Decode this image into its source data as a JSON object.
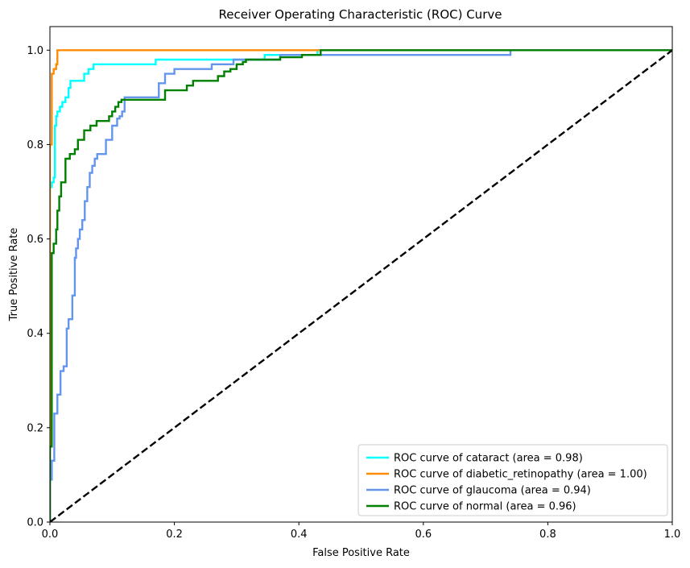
{
  "chart_data": {
    "type": "line",
    "title": "Receiver Operating Characteristic (ROC) Curve",
    "xlabel": "False Positive Rate",
    "ylabel": "True Positive Rate",
    "xlim": [
      0.0,
      1.0
    ],
    "ylim": [
      0.0,
      1.05
    ],
    "xticks": [
      0.0,
      0.2,
      0.4,
      0.6,
      0.8,
      1.0
    ],
    "yticks": [
      0.0,
      0.2,
      0.4,
      0.6,
      0.8,
      1.0
    ],
    "xtick_labels": [
      "0.0",
      "0.2",
      "0.4",
      "0.6",
      "0.8",
      "1.0"
    ],
    "ytick_labels": [
      "0.0",
      "0.2",
      "0.4",
      "0.6",
      "0.8",
      "1.0"
    ],
    "grid": false,
    "legend_position": "lower-right",
    "series": [
      {
        "name": "ROC curve of cataract (area = 0.98)",
        "color": "#00ffff",
        "x": [
          0,
          0,
          0.003,
          0.003,
          0.006,
          0.006,
          0.008,
          0.008,
          0.01,
          0.01,
          0.012,
          0.012,
          0.016,
          0.016,
          0.02,
          0.02,
          0.025,
          0.025,
          0.03,
          0.03,
          0.033,
          0.033,
          0.037,
          0.037,
          0.055,
          0.055,
          0.062,
          0.062,
          0.07,
          0.07,
          0.075,
          0.075,
          0.17,
          0.17,
          0.345,
          0.345,
          0.36,
          0.36,
          0.43,
          0.43,
          1.0
        ],
        "y": [
          0,
          0.71,
          0.71,
          0.72,
          0.72,
          0.73,
          0.73,
          0.84,
          0.84,
          0.86,
          0.86,
          0.87,
          0.87,
          0.88,
          0.88,
          0.89,
          0.89,
          0.9,
          0.9,
          0.92,
          0.92,
          0.935,
          0.935,
          0.935,
          0.935,
          0.95,
          0.95,
          0.96,
          0.96,
          0.97,
          0.97,
          0.97,
          0.97,
          0.98,
          0.98,
          0.99,
          0.99,
          0.99,
          0.99,
          1.0,
          1.0
        ]
      },
      {
        "name": "ROC curve of diabetic_retinopathy (area = 1.00)",
        "color": "#ff8c00",
        "x": [
          0,
          0,
          0.003,
          0.003,
          0.006,
          0.006,
          0.01,
          0.01,
          0.012,
          0.012,
          1.0
        ],
        "y": [
          0,
          0.8,
          0.8,
          0.95,
          0.95,
          0.96,
          0.96,
          0.97,
          0.97,
          1.0,
          1.0
        ]
      },
      {
        "name": "ROC curve of glaucoma (area = 0.94)",
        "color": "#6495ed",
        "x": [
          0,
          0,
          0.003,
          0.003,
          0.007,
          0.007,
          0.012,
          0.012,
          0.017,
          0.017,
          0.022,
          0.022,
          0.027,
          0.027,
          0.03,
          0.03,
          0.032,
          0.032,
          0.036,
          0.036,
          0.04,
          0.04,
          0.042,
          0.042,
          0.045,
          0.045,
          0.048,
          0.048,
          0.052,
          0.052,
          0.056,
          0.056,
          0.06,
          0.06,
          0.064,
          0.064,
          0.068,
          0.068,
          0.072,
          0.072,
          0.076,
          0.076,
          0.09,
          0.09,
          0.1,
          0.1,
          0.108,
          0.108,
          0.112,
          0.112,
          0.116,
          0.116,
          0.12,
          0.12,
          0.13,
          0.13,
          0.175,
          0.175,
          0.185,
          0.185,
          0.2,
          0.2,
          0.26,
          0.26,
          0.295,
          0.295,
          0.37,
          0.37,
          0.74,
          0.74,
          1.0
        ],
        "y": [
          0,
          0.09,
          0.09,
          0.13,
          0.13,
          0.23,
          0.23,
          0.27,
          0.27,
          0.32,
          0.32,
          0.33,
          0.33,
          0.41,
          0.41,
          0.43,
          0.43,
          0.43,
          0.43,
          0.48,
          0.48,
          0.56,
          0.56,
          0.58,
          0.58,
          0.6,
          0.6,
          0.62,
          0.62,
          0.64,
          0.64,
          0.68,
          0.68,
          0.71,
          0.71,
          0.74,
          0.74,
          0.755,
          0.755,
          0.77,
          0.77,
          0.78,
          0.78,
          0.81,
          0.81,
          0.84,
          0.84,
          0.855,
          0.855,
          0.86,
          0.86,
          0.87,
          0.87,
          0.9,
          0.9,
          0.9,
          0.9,
          0.93,
          0.93,
          0.95,
          0.95,
          0.96,
          0.96,
          0.97,
          0.97,
          0.98,
          0.98,
          0.99,
          0.99,
          1.0,
          1.0
        ]
      },
      {
        "name": "ROC curve of normal (area = 0.96)",
        "color": "#008000",
        "x": [
          0,
          0,
          0.003,
          0.003,
          0.006,
          0.006,
          0.01,
          0.01,
          0.012,
          0.012,
          0.015,
          0.015,
          0.018,
          0.018,
          0.025,
          0.025,
          0.032,
          0.032,
          0.04,
          0.04,
          0.045,
          0.045,
          0.055,
          0.055,
          0.06,
          0.06,
          0.065,
          0.065,
          0.075,
          0.075,
          0.095,
          0.095,
          0.1,
          0.1,
          0.105,
          0.105,
          0.11,
          0.11,
          0.115,
          0.115,
          0.185,
          0.185,
          0.22,
          0.22,
          0.23,
          0.23,
          0.27,
          0.27,
          0.28,
          0.28,
          0.29,
          0.29,
          0.3,
          0.3,
          0.31,
          0.31,
          0.315,
          0.315,
          0.37,
          0.37,
          0.405,
          0.405,
          0.435,
          0.435,
          1.0
        ],
        "y": [
          0,
          0.16,
          0.16,
          0.57,
          0.57,
          0.59,
          0.59,
          0.62,
          0.62,
          0.66,
          0.66,
          0.69,
          0.69,
          0.72,
          0.72,
          0.77,
          0.77,
          0.78,
          0.78,
          0.79,
          0.79,
          0.81,
          0.81,
          0.83,
          0.83,
          0.83,
          0.83,
          0.84,
          0.84,
          0.85,
          0.85,
          0.86,
          0.86,
          0.87,
          0.87,
          0.88,
          0.88,
          0.89,
          0.89,
          0.895,
          0.895,
          0.915,
          0.915,
          0.925,
          0.925,
          0.935,
          0.935,
          0.945,
          0.945,
          0.955,
          0.955,
          0.96,
          0.96,
          0.97,
          0.97,
          0.975,
          0.975,
          0.98,
          0.98,
          0.985,
          0.985,
          0.99,
          0.99,
          1.0,
          1.0
        ]
      }
    ],
    "reference_line": {
      "color": "#000000",
      "style": "dashed",
      "x": [
        0,
        1
      ],
      "y": [
        0,
        1
      ]
    }
  }
}
